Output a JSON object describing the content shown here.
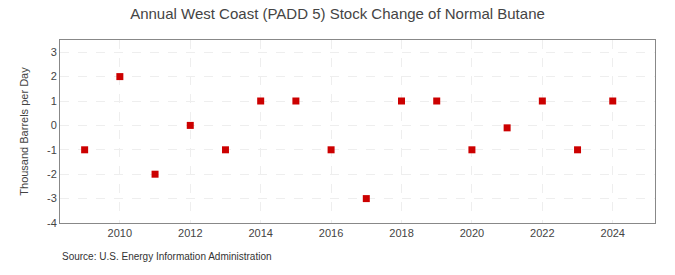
{
  "chart_data": {
    "type": "scatter",
    "title": "Annual West Coast (PADD 5) Stock Change of Normal Butane",
    "ylabel": "Thousand Barrels per Day",
    "annotations": [
      "Source: U.S. Energy Information Administration"
    ],
    "x": [
      2009,
      2010,
      2011,
      2012,
      2013,
      2014,
      2015,
      2016,
      2017,
      2018,
      2019,
      2020,
      2021,
      2022,
      2023,
      2024
    ],
    "values": [
      -1,
      2,
      -2,
      0,
      -1,
      1,
      1,
      -1,
      -3,
      1,
      1,
      -1,
      -0.1,
      1,
      -1,
      1
    ],
    "color": "#cc0000",
    "marker": "square",
    "xlim": [
      2008.3,
      2025.2
    ],
    "ylim": [
      -4,
      3.5
    ],
    "xticks": [
      2010,
      2012,
      2014,
      2016,
      2018,
      2020,
      2022,
      2024
    ],
    "yticks": [
      -4,
      -3,
      -2,
      -1,
      0,
      1,
      2,
      3
    ],
    "grid": true
  }
}
